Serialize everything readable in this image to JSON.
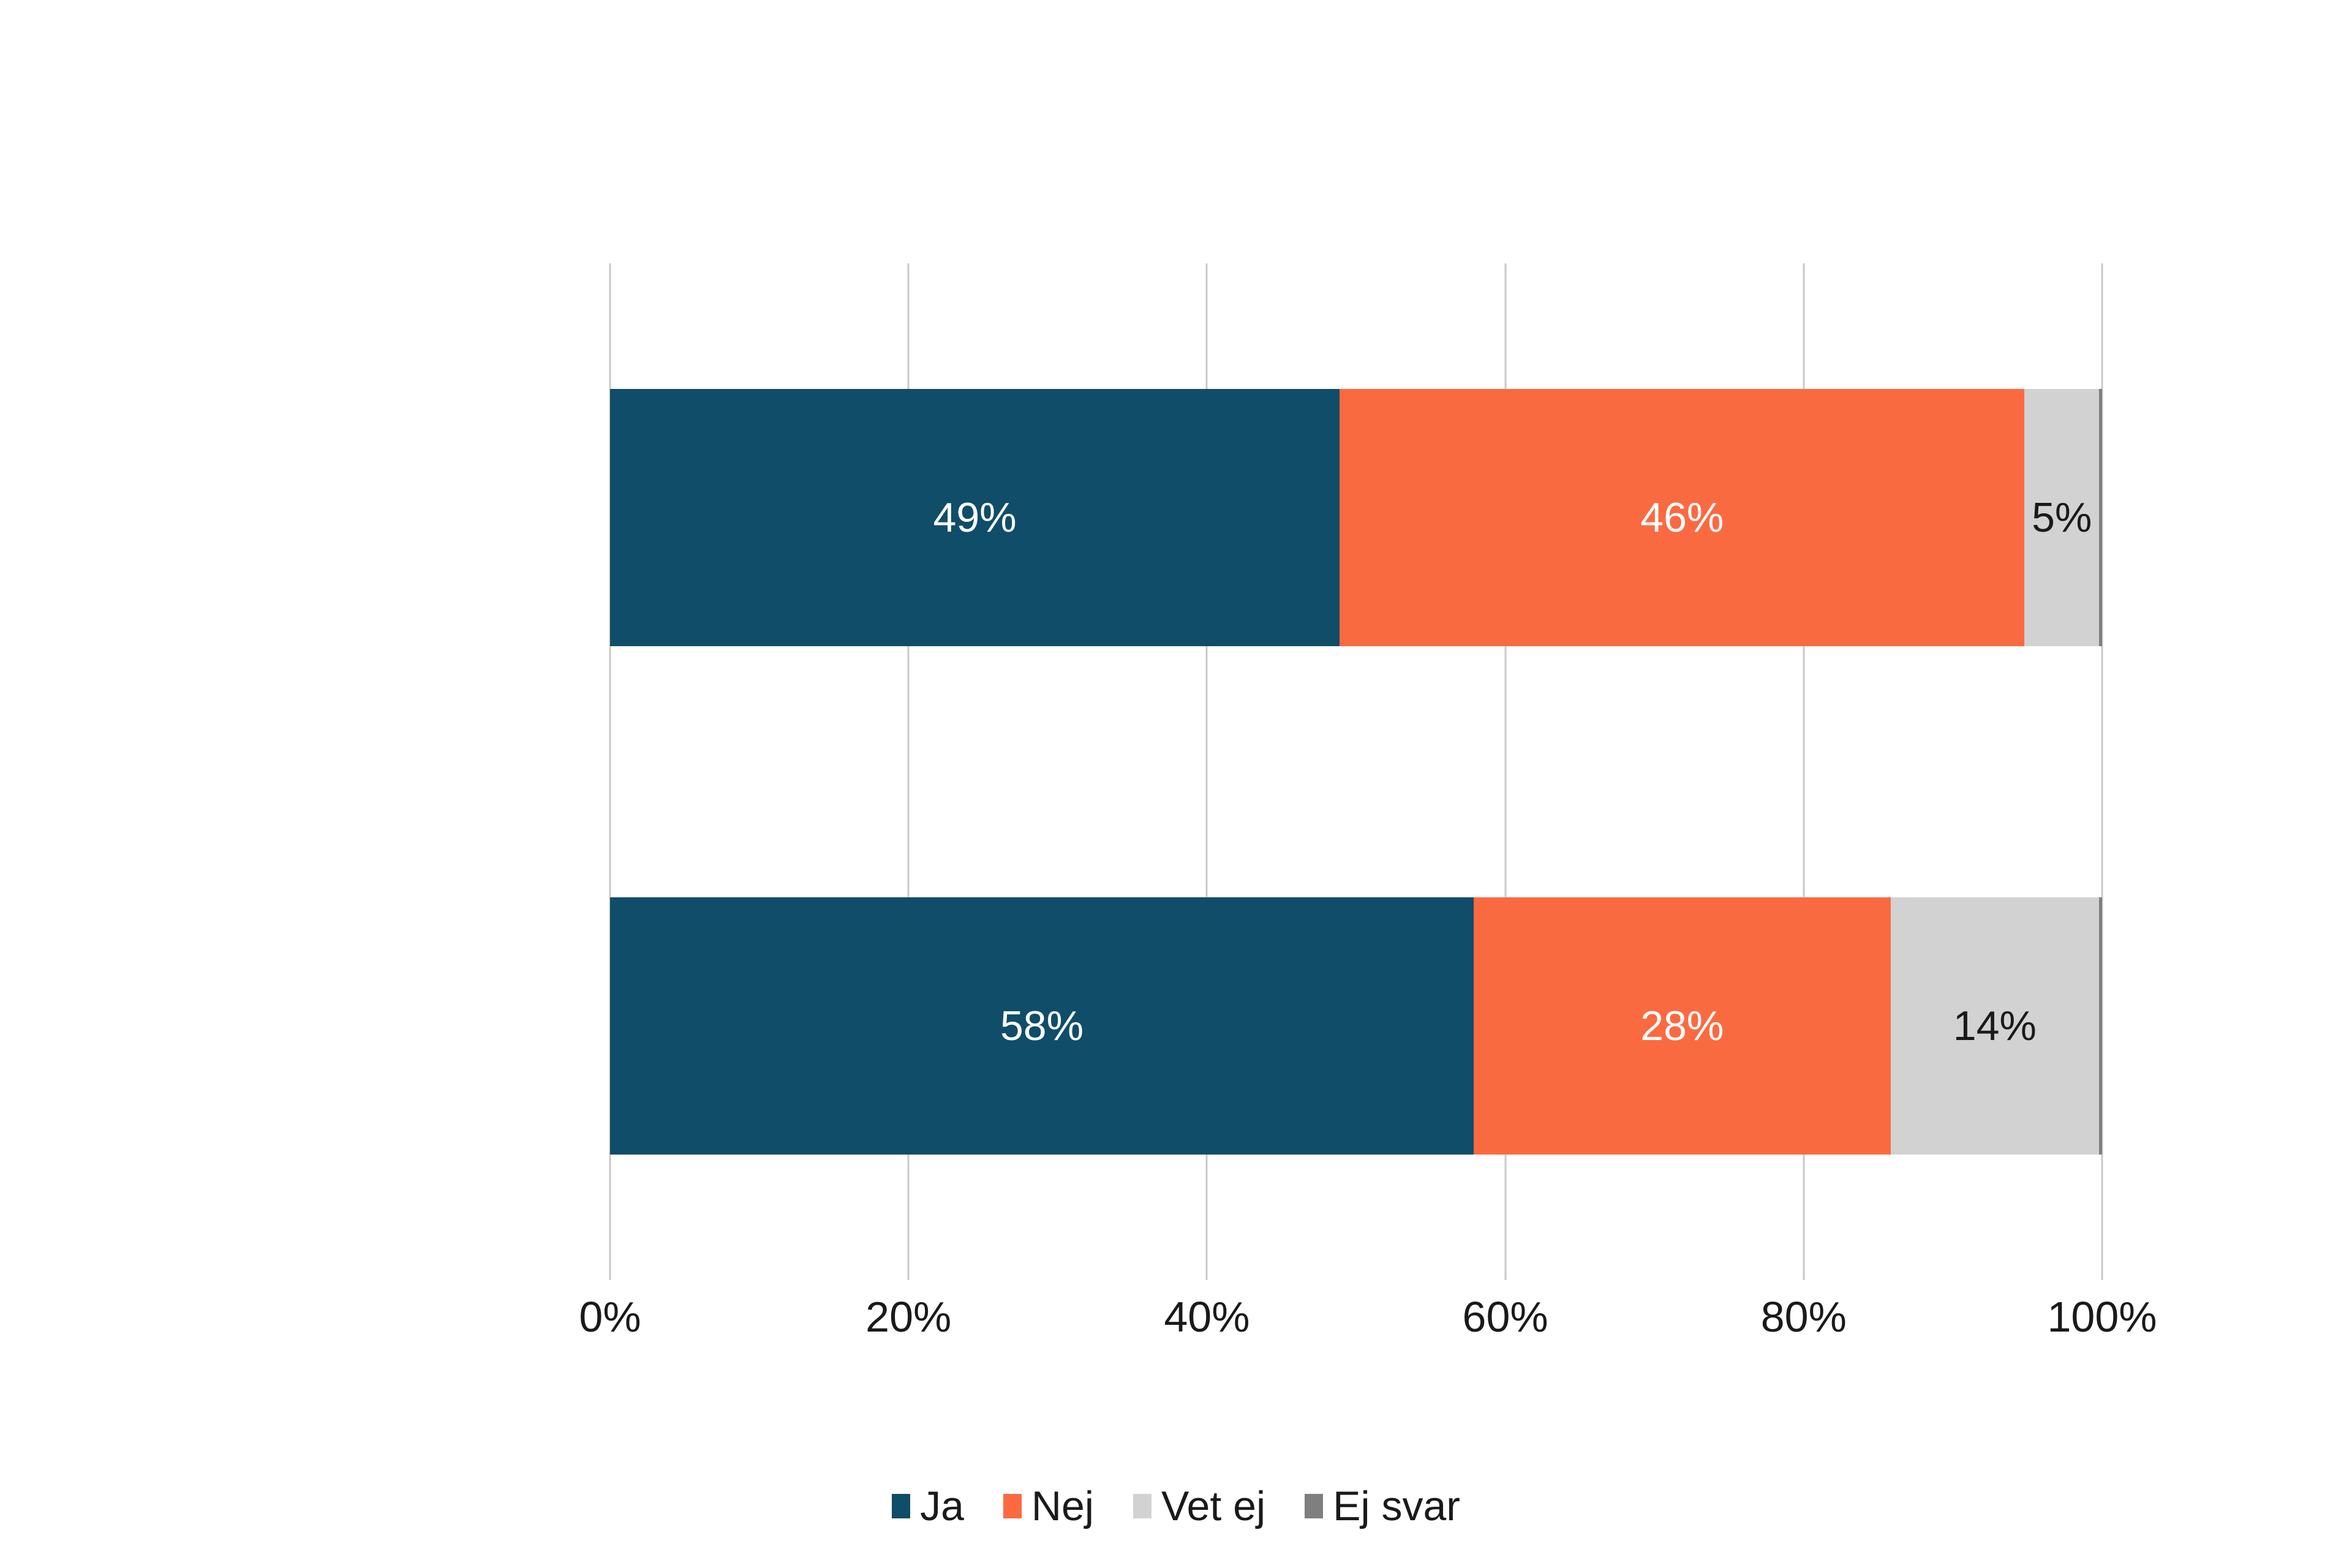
{
  "chart_data": {
    "type": "bar",
    "variant": "horizontal-stacked",
    "title": "",
    "categories": [
      "",
      ""
    ],
    "series": [
      {
        "name": "Ja",
        "color": "#104d68",
        "label_color": "#ffffff",
        "values": [
          49,
          58
        ],
        "labels": [
          "49%",
          "58%"
        ]
      },
      {
        "name": "Nej",
        "color": "#fa6a41",
        "label_color": "#ffffff",
        "values": [
          46,
          28
        ],
        "labels": [
          "46%",
          "28%"
        ]
      },
      {
        "name": "Vet ej",
        "color": "#d2d2d2",
        "label_color": "#1a1a1a",
        "values": [
          5,
          14
        ],
        "labels": [
          "5%",
          "14%"
        ]
      },
      {
        "name": "Ej svar",
        "color": "#7f7f7f",
        "label_color": "#ffffff",
        "values": [
          0,
          0
        ],
        "labels": [
          "",
          ""
        ]
      }
    ],
    "x_axis": {
      "min": 0,
      "max": 100,
      "tick_values": [
        0,
        20,
        40,
        60,
        80,
        100
      ],
      "tick_labels": [
        "0%",
        "20%",
        "40%",
        "60%",
        "80%",
        "100%"
      ]
    },
    "legend": {
      "position": "bottom",
      "items": [
        "Ja",
        "Nej",
        "Vet ej",
        "Ej svar"
      ]
    },
    "grid": {
      "vertical": true,
      "color": "#c9c9c9"
    },
    "background": "#ffffff"
  }
}
